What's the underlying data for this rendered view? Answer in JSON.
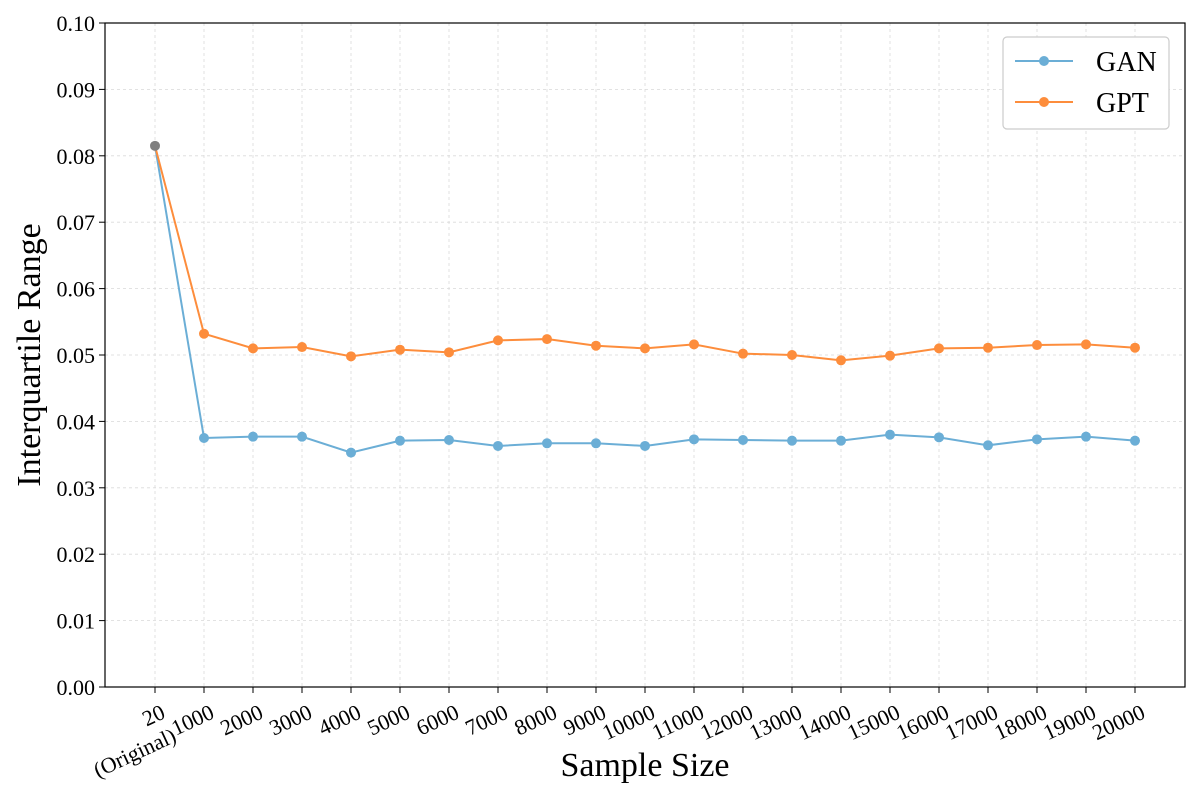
{
  "chart_data": {
    "type": "line",
    "title": "",
    "xlabel": "Sample Size",
    "ylabel": "Interquartile Range",
    "categories": [
      "20\n(Original)",
      "1000",
      "2000",
      "3000",
      "4000",
      "5000",
      "6000",
      "7000",
      "8000",
      "9000",
      "10000",
      "11000",
      "12000",
      "13000",
      "14000",
      "15000",
      "16000",
      "17000",
      "18000",
      "19000",
      "20000"
    ],
    "ylim": [
      0.0,
      0.1
    ],
    "yticks": [
      "0.00",
      "0.01",
      "0.02",
      "0.03",
      "0.04",
      "0.05",
      "0.06",
      "0.07",
      "0.08",
      "0.09",
      "0.10"
    ],
    "grid": true,
    "legend_position": "top-right",
    "original_point": {
      "category_index": 0,
      "value": 0.0815,
      "color": "#808080"
    },
    "series": [
      {
        "name": "GAN",
        "color": "#6baed6",
        "values": [
          0.0815,
          0.0375,
          0.0377,
          0.0377,
          0.0353,
          0.0371,
          0.0372,
          0.0363,
          0.0367,
          0.0367,
          0.0363,
          0.0373,
          0.0372,
          0.0371,
          0.0371,
          0.038,
          0.0376,
          0.0364,
          0.0373,
          0.0377,
          0.0371
        ]
      },
      {
        "name": "GPT",
        "color": "#fd8d3c",
        "values": [
          0.0815,
          0.0532,
          0.051,
          0.0512,
          0.0498,
          0.0508,
          0.0504,
          0.0522,
          0.0524,
          0.0514,
          0.051,
          0.0516,
          0.0502,
          0.05,
          0.0492,
          0.0499,
          0.051,
          0.0511,
          0.0515,
          0.0516,
          0.0511
        ]
      }
    ]
  }
}
